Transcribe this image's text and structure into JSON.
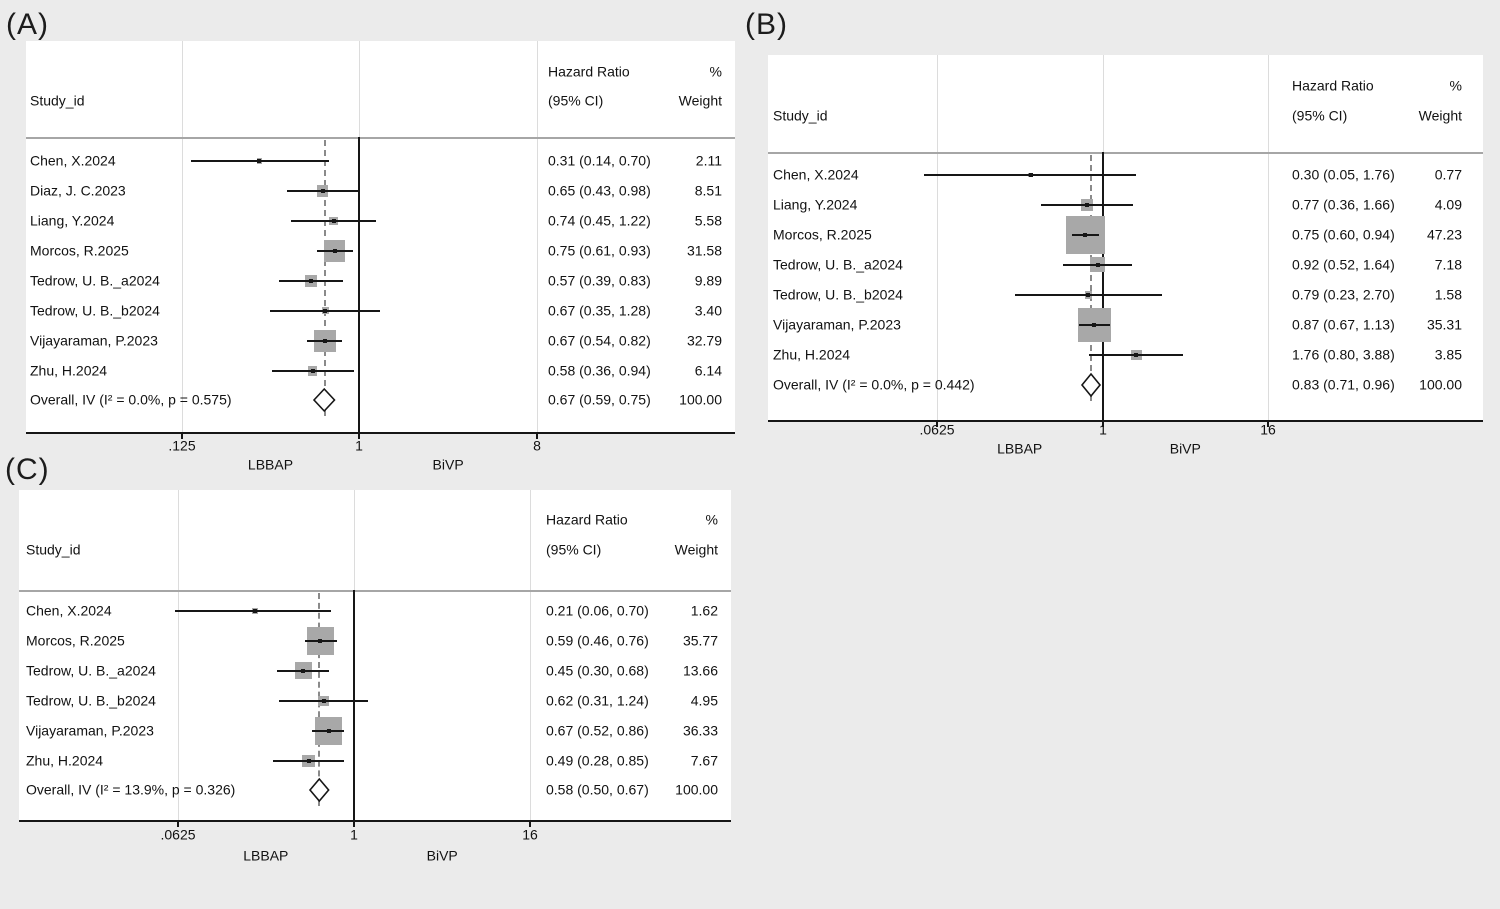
{
  "figure": {
    "background_color": "#ebebeb",
    "panel_background": "#ffffff",
    "marker_color": "#a8a8a8",
    "reference_line_value": 1
  },
  "columns": {
    "study_header": "Study_id",
    "hr_header_line1": "Hazard Ratio",
    "hr_header_line2": "(95% CI)",
    "weight_header_line1": "%",
    "weight_header_line2": "Weight"
  },
  "chart_data": [
    {
      "panel": "A",
      "type": "forest",
      "title": "(A)",
      "effect_measure": "Hazard Ratio",
      "x_axis": {
        "scale": "log",
        "tick_values": [
          0.125,
          1,
          8
        ],
        "tick_labels": [
          ".125",
          "1",
          "8"
        ],
        "left_group": "LBBAP",
        "right_group": "BiVP"
      },
      "studies": [
        {
          "study": "Chen, X.2024",
          "hr": 0.31,
          "ci_low": 0.14,
          "ci_high": 0.7,
          "hr_ci_text": "0.31 (0.14, 0.70)",
          "weight": 2.11,
          "weight_text": "2.11"
        },
        {
          "study": "Diaz, J. C.2023",
          "hr": 0.65,
          "ci_low": 0.43,
          "ci_high": 0.98,
          "hr_ci_text": "0.65 (0.43, 0.98)",
          "weight": 8.51,
          "weight_text": "8.51"
        },
        {
          "study": "Liang, Y.2024",
          "hr": 0.74,
          "ci_low": 0.45,
          "ci_high": 1.22,
          "hr_ci_text": "0.74 (0.45, 1.22)",
          "weight": 5.58,
          "weight_text": "5.58"
        },
        {
          "study": "Morcos, R.2025",
          "hr": 0.75,
          "ci_low": 0.61,
          "ci_high": 0.93,
          "hr_ci_text": "0.75 (0.61, 0.93)",
          "weight": 31.58,
          "weight_text": "31.58"
        },
        {
          "study": "Tedrow, U. B._a2024",
          "hr": 0.57,
          "ci_low": 0.39,
          "ci_high": 0.83,
          "hr_ci_text": "0.57 (0.39, 0.83)",
          "weight": 9.89,
          "weight_text": "9.89"
        },
        {
          "study": "Tedrow, U. B._b2024",
          "hr": 0.67,
          "ci_low": 0.35,
          "ci_high": 1.28,
          "hr_ci_text": "0.67 (0.35, 1.28)",
          "weight": 3.4,
          "weight_text": "3.40"
        },
        {
          "study": "Vijayaraman, P.2023",
          "hr": 0.67,
          "ci_low": 0.54,
          "ci_high": 0.82,
          "hr_ci_text": "0.67 (0.54, 0.82)",
          "weight": 32.79,
          "weight_text": "32.79"
        },
        {
          "study": "Zhu, H.2024",
          "hr": 0.58,
          "ci_low": 0.36,
          "ci_high": 0.94,
          "hr_ci_text": "0.58 (0.36, 0.94)",
          "weight": 6.14,
          "weight_text": "6.14"
        }
      ],
      "overall": {
        "label": "Overall, IV (I² = 0.0%, p = 0.575)",
        "hr": 0.67,
        "ci_low": 0.59,
        "ci_high": 0.75,
        "hr_ci_text": "0.67 (0.59, 0.75)",
        "weight_text": "100.00"
      }
    },
    {
      "panel": "B",
      "type": "forest",
      "title": "(B)",
      "effect_measure": "Hazard Ratio",
      "x_axis": {
        "scale": "log",
        "tick_values": [
          0.0625,
          1,
          16
        ],
        "tick_labels": [
          ".0625",
          "1",
          "16"
        ],
        "left_group": "LBBAP",
        "right_group": "BiVP"
      },
      "studies": [
        {
          "study": "Chen, X.2024",
          "hr": 0.3,
          "ci_low": 0.05,
          "ci_high": 1.76,
          "hr_ci_text": "0.30 (0.05, 1.76)",
          "weight": 0.77,
          "weight_text": "0.77"
        },
        {
          "study": "Liang, Y.2024",
          "hr": 0.77,
          "ci_low": 0.36,
          "ci_high": 1.66,
          "hr_ci_text": "0.77 (0.36, 1.66)",
          "weight": 4.09,
          "weight_text": "4.09"
        },
        {
          "study": "Morcos, R.2025",
          "hr": 0.75,
          "ci_low": 0.6,
          "ci_high": 0.94,
          "hr_ci_text": "0.75 (0.60, 0.94)",
          "weight": 47.23,
          "weight_text": "47.23"
        },
        {
          "study": "Tedrow, U. B._a2024",
          "hr": 0.92,
          "ci_low": 0.52,
          "ci_high": 1.64,
          "hr_ci_text": "0.92 (0.52, 1.64)",
          "weight": 7.18,
          "weight_text": "7.18"
        },
        {
          "study": "Tedrow, U. B._b2024",
          "hr": 0.79,
          "ci_low": 0.23,
          "ci_high": 2.7,
          "hr_ci_text": "0.79 (0.23, 2.70)",
          "weight": 1.58,
          "weight_text": "1.58"
        },
        {
          "study": "Vijayaraman, P.2023",
          "hr": 0.87,
          "ci_low": 0.67,
          "ci_high": 1.13,
          "hr_ci_text": "0.87 (0.67, 1.13)",
          "weight": 35.31,
          "weight_text": "35.31"
        },
        {
          "study": "Zhu, H.2024",
          "hr": 1.76,
          "ci_low": 0.8,
          "ci_high": 3.88,
          "hr_ci_text": "1.76 (0.80, 3.88)",
          "weight": 3.85,
          "weight_text": "3.85"
        }
      ],
      "overall": {
        "label": "Overall, IV (I² = 0.0%, p = 0.442)",
        "hr": 0.83,
        "ci_low": 0.71,
        "ci_high": 0.96,
        "hr_ci_text": "0.83 (0.71, 0.96)",
        "weight_text": "100.00"
      }
    },
    {
      "panel": "C",
      "type": "forest",
      "title": "(C)",
      "effect_measure": "Hazard Ratio",
      "x_axis": {
        "scale": "log",
        "tick_values": [
          0.0625,
          1,
          16
        ],
        "tick_labels": [
          ".0625",
          "1",
          "16"
        ],
        "left_group": "LBBAP",
        "right_group": "BiVP"
      },
      "studies": [
        {
          "study": "Chen, X.2024",
          "hr": 0.21,
          "ci_low": 0.06,
          "ci_high": 0.7,
          "hr_ci_text": "0.21 (0.06, 0.70)",
          "weight": 1.62,
          "weight_text": "1.62"
        },
        {
          "study": "Morcos, R.2025",
          "hr": 0.59,
          "ci_low": 0.46,
          "ci_high": 0.76,
          "hr_ci_text": "0.59 (0.46, 0.76)",
          "weight": 35.77,
          "weight_text": "35.77"
        },
        {
          "study": "Tedrow, U. B._a2024",
          "hr": 0.45,
          "ci_low": 0.3,
          "ci_high": 0.68,
          "hr_ci_text": "0.45 (0.30, 0.68)",
          "weight": 13.66,
          "weight_text": "13.66"
        },
        {
          "study": "Tedrow, U. B._b2024",
          "hr": 0.62,
          "ci_low": 0.31,
          "ci_high": 1.24,
          "hr_ci_text": "0.62 (0.31, 1.24)",
          "weight": 4.95,
          "weight_text": "4.95"
        },
        {
          "study": "Vijayaraman, P.2023",
          "hr": 0.67,
          "ci_low": 0.52,
          "ci_high": 0.86,
          "hr_ci_text": "0.67 (0.52, 0.86)",
          "weight": 36.33,
          "weight_text": "36.33"
        },
        {
          "study": "Zhu, H.2024",
          "hr": 0.49,
          "ci_low": 0.28,
          "ci_high": 0.85,
          "hr_ci_text": "0.49 (0.28, 0.85)",
          "weight": 7.67,
          "weight_text": "7.67"
        }
      ],
      "overall": {
        "label": "Overall, IV (I² = 13.9%, p = 0.326)",
        "hr": 0.58,
        "ci_low": 0.5,
        "ci_high": 0.67,
        "hr_ci_text": "0.58 (0.50, 0.67)",
        "weight_text": "100.00"
      }
    }
  ]
}
